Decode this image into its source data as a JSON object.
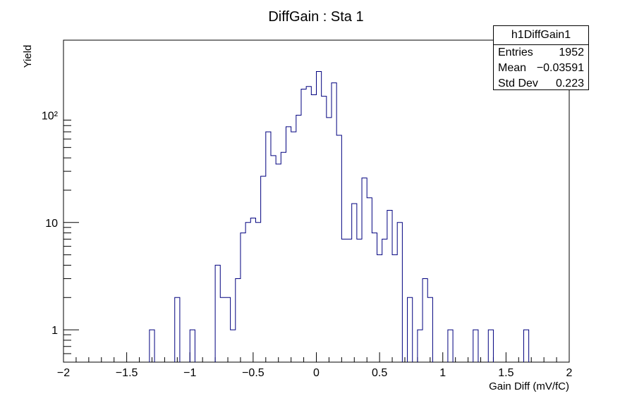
{
  "chart_data": {
    "type": "bar",
    "subtype": "histogram-step",
    "title": "DiffGain : Sta 1",
    "xlabel": "Gain Diff (mV/fC)",
    "ylabel": "Yield",
    "xlim": [
      -2,
      2
    ],
    "ylim": [
      0.5,
      500
    ],
    "yscale": "log",
    "grid": false,
    "line_color": "#00007f",
    "x_ticks": [
      "−2",
      "−1.5",
      "−1",
      "−0.5",
      "0",
      "0.5",
      "1",
      "1.5",
      "2"
    ],
    "y_ticks": [
      {
        "value": 1,
        "label": "1"
      },
      {
        "value": 10,
        "label": "10"
      },
      {
        "value": 100,
        "label": "10²"
      }
    ],
    "bins": [
      {
        "x0": -1.32,
        "x1": -1.28,
        "y": 1
      },
      {
        "x0": -1.12,
        "x1": -1.08,
        "y": 2
      },
      {
        "x0": -1.0,
        "x1": -0.96,
        "y": 1
      },
      {
        "x0": -0.8,
        "x1": -0.76,
        "y": 4
      },
      {
        "x0": -0.76,
        "x1": -0.72,
        "y": 2
      },
      {
        "x0": -0.72,
        "x1": -0.68,
        "y": 2
      },
      {
        "x0": -0.68,
        "x1": -0.64,
        "y": 1
      },
      {
        "x0": -0.64,
        "x1": -0.6,
        "y": 3
      },
      {
        "x0": -0.6,
        "x1": -0.56,
        "y": 8
      },
      {
        "x0": -0.56,
        "x1": -0.52,
        "y": 10
      },
      {
        "x0": -0.52,
        "x1": -0.48,
        "y": 11
      },
      {
        "x0": -0.48,
        "x1": -0.44,
        "y": 10
      },
      {
        "x0": -0.44,
        "x1": -0.4,
        "y": 27
      },
      {
        "x0": -0.4,
        "x1": -0.36,
        "y": 70
      },
      {
        "x0": -0.36,
        "x1": -0.32,
        "y": 42
      },
      {
        "x0": -0.32,
        "x1": -0.28,
        "y": 35
      },
      {
        "x0": -0.28,
        "x1": -0.24,
        "y": 45
      },
      {
        "x0": -0.24,
        "x1": -0.2,
        "y": 78
      },
      {
        "x0": -0.2,
        "x1": -0.16,
        "y": 70
      },
      {
        "x0": -0.16,
        "x1": -0.12,
        "y": 100
      },
      {
        "x0": -0.12,
        "x1": -0.08,
        "y": 175
      },
      {
        "x0": -0.08,
        "x1": -0.04,
        "y": 185
      },
      {
        "x0": -0.04,
        "x1": 0.0,
        "y": 155
      },
      {
        "x0": 0.0,
        "x1": 0.04,
        "y": 255
      },
      {
        "x0": 0.04,
        "x1": 0.08,
        "y": 150
      },
      {
        "x0": 0.08,
        "x1": 0.12,
        "y": 95
      },
      {
        "x0": 0.12,
        "x1": 0.16,
        "y": 200
      },
      {
        "x0": 0.16,
        "x1": 0.2,
        "y": 65
      },
      {
        "x0": 0.2,
        "x1": 0.24,
        "y": 7
      },
      {
        "x0": 0.24,
        "x1": 0.28,
        "y": 7
      },
      {
        "x0": 0.28,
        "x1": 0.32,
        "y": 15
      },
      {
        "x0": 0.32,
        "x1": 0.36,
        "y": 7
      },
      {
        "x0": 0.36,
        "x1": 0.4,
        "y": 26
      },
      {
        "x0": 0.4,
        "x1": 0.44,
        "y": 17
      },
      {
        "x0": 0.44,
        "x1": 0.48,
        "y": 8
      },
      {
        "x0": 0.48,
        "x1": 0.52,
        "y": 5
      },
      {
        "x0": 0.52,
        "x1": 0.56,
        "y": 7
      },
      {
        "x0": 0.56,
        "x1": 0.6,
        "y": 13
      },
      {
        "x0": 0.6,
        "x1": 0.64,
        "y": 5
      },
      {
        "x0": 0.64,
        "x1": 0.68,
        "y": 10
      },
      {
        "x0": 0.72,
        "x1": 0.76,
        "y": 2
      },
      {
        "x0": 0.8,
        "x1": 0.84,
        "y": 1
      },
      {
        "x0": 0.84,
        "x1": 0.88,
        "y": 3
      },
      {
        "x0": 0.88,
        "x1": 0.92,
        "y": 2
      },
      {
        "x0": 1.04,
        "x1": 1.08,
        "y": 1
      },
      {
        "x0": 1.24,
        "x1": 1.28,
        "y": 1
      },
      {
        "x0": 1.36,
        "x1": 1.4,
        "y": 1
      },
      {
        "x0": 1.64,
        "x1": 1.68,
        "y": 1
      }
    ],
    "stats": {
      "name": "h1DiffGain1",
      "rows": [
        {
          "key": "Entries",
          "value": "1952"
        },
        {
          "key": "Mean",
          "value": "−0.03591"
        },
        {
          "key": "Std Dev",
          "value": "0.223"
        }
      ]
    }
  }
}
